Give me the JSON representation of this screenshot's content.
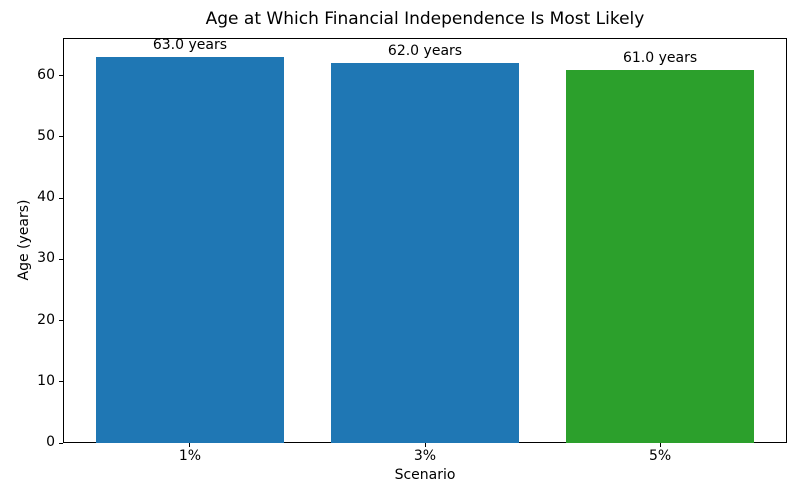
{
  "chart_data": {
    "type": "bar",
    "title": "Age at Which Financial Independence Is Most Likely",
    "xlabel": "Scenario",
    "ylabel": "Age (years)",
    "categories": [
      "1%",
      "3%",
      "5%"
    ],
    "values": [
      63.0,
      62.0,
      61.0
    ],
    "bar_labels": [
      "63.0 years",
      "62.0 years",
      "61.0 years"
    ],
    "colors": [
      "#1f77b4",
      "#1f77b4",
      "#2ca02c"
    ],
    "ylim": [
      0,
      66.15
    ],
    "xlim": [
      -0.54,
      2.54
    ],
    "yticks": [
      0,
      10,
      20,
      30,
      40,
      50,
      60
    ],
    "bar_width_units": 0.8,
    "grid": false,
    "legend": null
  }
}
